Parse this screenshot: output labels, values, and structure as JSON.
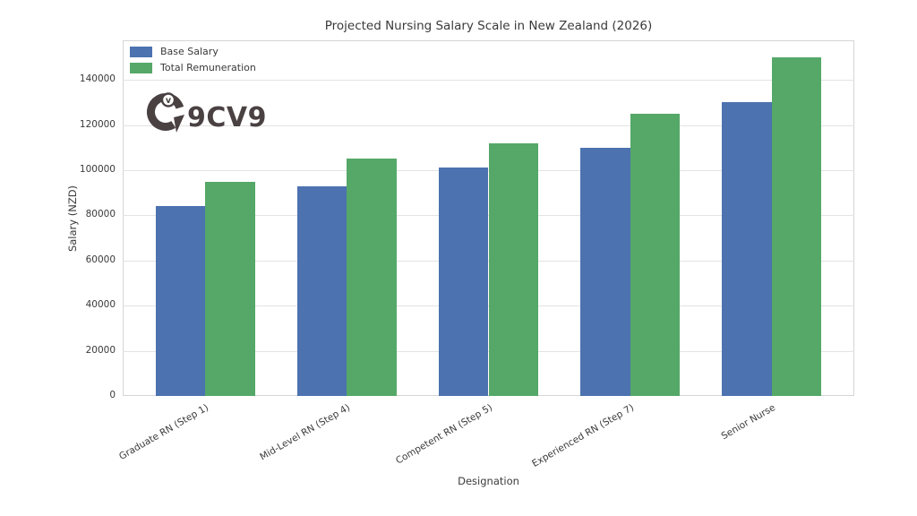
{
  "figure": {
    "watermark": "9CV9"
  },
  "chart_data": {
    "type": "bar",
    "title": "Projected Nursing Salary Scale in New Zealand (2026)",
    "xlabel": "Designation",
    "ylabel": "Salary (NZD)",
    "categories": [
      "Graduate RN (Step 1)",
      "Mid-Level RN (Step 4)",
      "Competent RN (Step 5)",
      "Experienced RN (Step 7)",
      "Senior Nurse"
    ],
    "series": [
      {
        "name": "Base Salary",
        "color": "#4C72B0",
        "values": [
          84000,
          93000,
          101000,
          110000,
          130000
        ]
      },
      {
        "name": "Total Remuneration",
        "color": "#55A868",
        "values": [
          95000,
          105000,
          112000,
          125000,
          150000
        ]
      }
    ],
    "yticks": [
      0,
      20000,
      40000,
      60000,
      80000,
      100000,
      120000,
      140000
    ],
    "ylim": [
      0,
      157500
    ],
    "grid": true,
    "legend_position": "upper-left",
    "bar_width": 0.35
  },
  "colors": {
    "background": "#ffffff",
    "grid": "#e3e3e3",
    "spine": "#d5d5d5",
    "text": "#3a3a3a",
    "logo": "#4a4143"
  }
}
